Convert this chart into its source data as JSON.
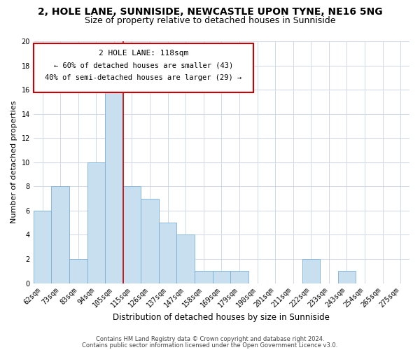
{
  "title": "2, HOLE LANE, SUNNISIDE, NEWCASTLE UPON TYNE, NE16 5NG",
  "subtitle": "Size of property relative to detached houses in Sunniside",
  "xlabel": "Distribution of detached houses by size in Sunniside",
  "ylabel": "Number of detached properties",
  "bin_labels": [
    "62sqm",
    "73sqm",
    "83sqm",
    "94sqm",
    "105sqm",
    "115sqm",
    "126sqm",
    "137sqm",
    "147sqm",
    "158sqm",
    "169sqm",
    "179sqm",
    "190sqm",
    "201sqm",
    "211sqm",
    "222sqm",
    "233sqm",
    "243sqm",
    "254sqm",
    "265sqm",
    "275sqm"
  ],
  "bar_heights": [
    6,
    8,
    2,
    10,
    16,
    8,
    7,
    5,
    4,
    1,
    1,
    1,
    0,
    0,
    0,
    2,
    0,
    1,
    0,
    0,
    0
  ],
  "bar_color": "#c8dff0",
  "bar_edge_color": "#7aafd4",
  "vline_x": 4.5,
  "vline_color": "#cc0000",
  "ylim": [
    0,
    20
  ],
  "yticks": [
    0,
    2,
    4,
    6,
    8,
    10,
    12,
    14,
    16,
    18,
    20
  ],
  "annotation_title": "2 HOLE LANE: 118sqm",
  "annotation_line1": "← 60% of detached houses are smaller (43)",
  "annotation_line2": "40% of semi-detached houses are larger (29) →",
  "annotation_box_color": "#ffffff",
  "annotation_box_edge": "#cc0000",
  "footer1": "Contains HM Land Registry data © Crown copyright and database right 2024.",
  "footer2": "Contains public sector information licensed under the Open Government Licence v3.0.",
  "background_color": "#ffffff",
  "grid_color": "#d0d8e8",
  "title_fontsize": 10,
  "subtitle_fontsize": 9,
  "axis_label_fontsize": 8.5,
  "tick_fontsize": 7,
  "annotation_title_fontsize": 8,
  "annotation_text_fontsize": 7.5,
  "footer_fontsize": 6,
  "ylabel_fontsize": 8
}
